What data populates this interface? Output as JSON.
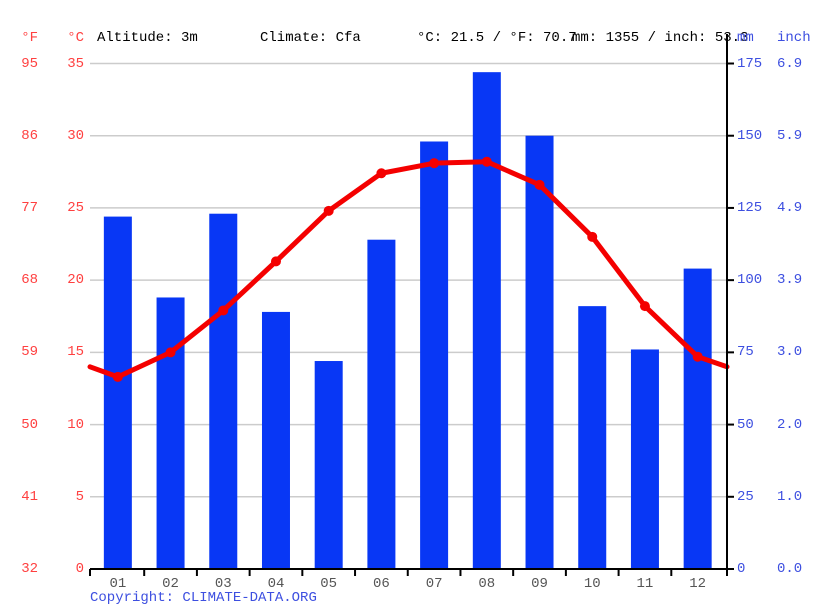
{
  "header": {
    "f": "°F",
    "c": "°C",
    "altitude": "Altitude: 3m",
    "climate": "Climate: Cfa",
    "temp_summary": "°C: 21.5 / °F: 70.7",
    "precip_summary": "mm: 1355 / inch: 53.3",
    "mm": "mm",
    "inch": "inch"
  },
  "axes": {
    "fahrenheit": [
      "95",
      "86",
      "77",
      "68",
      "59",
      "50",
      "41",
      "32"
    ],
    "celsius": [
      "35",
      "30",
      "25",
      "20",
      "15",
      "10",
      "5",
      "0"
    ],
    "mm": [
      "175",
      "150",
      "125",
      "100",
      "75",
      "50",
      "25",
      "0"
    ],
    "inch": [
      "6.9",
      "5.9",
      "4.9",
      "3.9",
      "3.0",
      "2.0",
      "1.0",
      "0.0"
    ]
  },
  "chart_data": {
    "type": "bar+line",
    "categories": [
      "01",
      "02",
      "03",
      "04",
      "05",
      "06",
      "07",
      "08",
      "09",
      "10",
      "11",
      "12"
    ],
    "series": [
      {
        "name": "precipitation_mm",
        "type": "bar",
        "values": [
          122,
          94,
          123,
          89,
          72,
          114,
          148,
          172,
          150,
          91,
          76,
          104
        ]
      },
      {
        "name": "temperature_c",
        "type": "line",
        "values": [
          13.3,
          15.0,
          17.9,
          21.3,
          24.8,
          27.4,
          28.1,
          28.2,
          26.6,
          23.0,
          18.2,
          14.7
        ],
        "edge_value": 14.0
      }
    ],
    "title": "",
    "xlabel": "",
    "ylabel_left": "°C",
    "ylabel_right": "mm",
    "ylim_left_c": [
      0,
      35
    ],
    "ylim_right_mm": [
      0,
      175
    ],
    "grid": true,
    "legend": "none",
    "annual_mean_c": 21.5,
    "annual_precip_mm": 1355
  },
  "footer": {
    "copyright_prefix": "Copyright: ",
    "link_text": "CLIMATE-DATA.ORG"
  },
  "colors": {
    "bar": "#0837f5",
    "line": "#f40000",
    "axis_red": "#ff4040",
    "axis_blue": "#3d4fe0",
    "grid": "#cccccc",
    "month_label": "#555555",
    "axis_black": "#000000"
  }
}
